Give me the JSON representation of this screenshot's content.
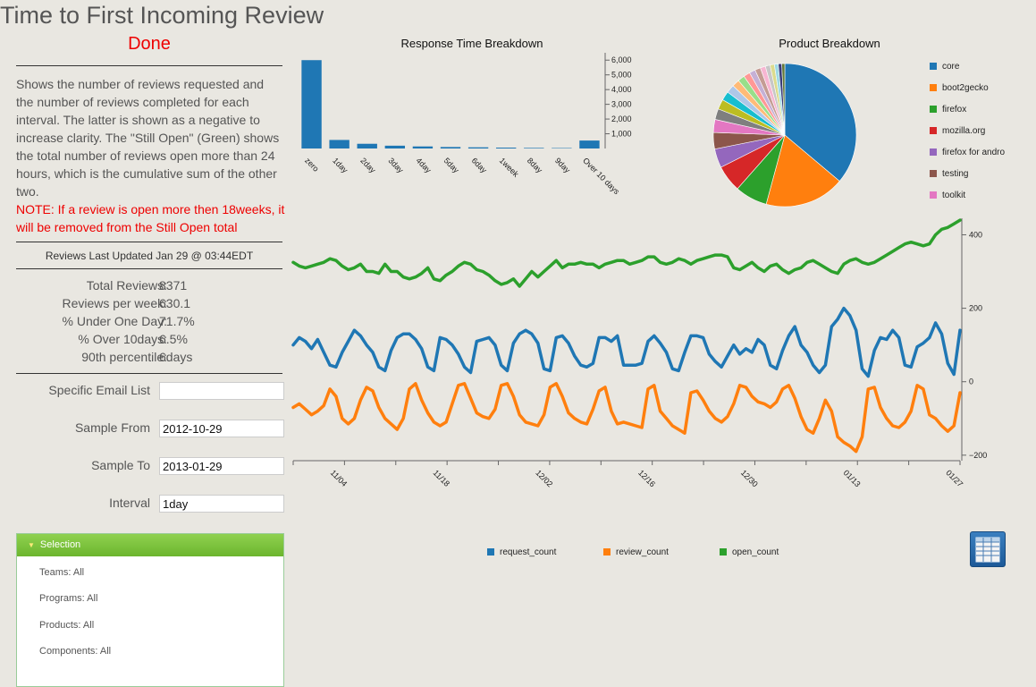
{
  "page": {
    "title": "Time to First Incoming Review",
    "status": "Done",
    "description": "Shows the number of reviews requested and the number of reviews completed for each interval. The latter is shown as a negative to increase clarity. The \"Still Open\" (Green) shows the total number of reviews open more than 24 hours, which is the cumulative sum of the other two.",
    "note": "NOTE: If a review is open more then 18weeks, it will be removed from the Still Open total",
    "last_updated": "Reviews Last Updated Jan 29 @ 03:44EDT"
  },
  "stats": [
    {
      "label": "Total Reviews:",
      "value": "8371"
    },
    {
      "label": "Reviews per week:",
      "value": "630.1"
    },
    {
      "label": "% Under One Day:",
      "value": "71.7%"
    },
    {
      "label": "% Over 10days:",
      "value": "6.5%"
    },
    {
      "label": "90th percentile:",
      "value": "6days"
    }
  ],
  "form": {
    "email_label": "Specific Email List",
    "email_value": "",
    "from_label": "Sample From",
    "from_value": "2012-10-29",
    "to_label": "Sample To",
    "to_value": "2013-01-29",
    "interval_label": "Interval",
    "interval_value": "1day"
  },
  "selection": {
    "header": "Selection",
    "items": [
      "Teams: All",
      "Programs: All",
      "Products: All",
      "Components: All"
    ]
  },
  "chart_data": [
    {
      "type": "bar",
      "title": "Response Time Breakdown",
      "categories": [
        "zero",
        "1day",
        "2day",
        "3day",
        "4day",
        "5day",
        "6day",
        "1week",
        "8day",
        "9day",
        "Over 10 days"
      ],
      "values": [
        6000,
        580,
        320,
        190,
        140,
        100,
        80,
        60,
        40,
        30,
        540
      ],
      "ylim": [
        0,
        6500
      ],
      "yticks": [
        1000,
        2000,
        3000,
        4000,
        5000,
        6000
      ],
      "ytick_labels": [
        "1,000",
        "2,000",
        "3,000",
        "4,000",
        "5,000",
        "6,000"
      ],
      "color": "#1f77b4"
    },
    {
      "type": "pie",
      "title": "Product Breakdown",
      "legend_position": "right",
      "slices": [
        {
          "name": "core",
          "value": 37.0,
          "color": "#1f77b4"
        },
        {
          "name": "boot2gecko",
          "value": 18.5,
          "color": "#ff7f0e"
        },
        {
          "name": "firefox",
          "value": 7.5,
          "color": "#2ca02c"
        },
        {
          "name": "mozilla.org",
          "value": 6.2,
          "color": "#d62728"
        },
        {
          "name": "firefox for andro",
          "value": 4.4,
          "color": "#9467bd"
        },
        {
          "name": "testing",
          "value": 3.8,
          "color": "#8c564b"
        },
        {
          "name": "toolkit",
          "value": 3.0,
          "color": "#e377c2"
        },
        {
          "value": 2.5,
          "color": "#7f7f7f"
        },
        {
          "value": 2.3,
          "color": "#bcbd22"
        },
        {
          "value": 2.1,
          "color": "#17becf"
        },
        {
          "value": 1.9,
          "color": "#aec7e8"
        },
        {
          "value": 1.7,
          "color": "#ffbb78"
        },
        {
          "value": 1.6,
          "color": "#98df8a"
        },
        {
          "value": 1.5,
          "color": "#ff9896"
        },
        {
          "value": 1.4,
          "color": "#c5b0d5"
        },
        {
          "value": 1.3,
          "color": "#c49c94"
        },
        {
          "value": 1.2,
          "color": "#f7b6d2"
        },
        {
          "value": 1.1,
          "color": "#c7c7c7"
        },
        {
          "value": 1.0,
          "color": "#dbdb8d"
        },
        {
          "value": 0.9,
          "color": "#9edae5"
        },
        {
          "value": 0.8,
          "color": "#393b79"
        },
        {
          "value": 0.7,
          "color": "#637939"
        }
      ]
    },
    {
      "type": "line",
      "xlabels": [
        "11/04",
        "11/18",
        "12/02",
        "12/16",
        "12/30",
        "01/13",
        "01/27"
      ],
      "x_start": "2012-10-29",
      "x_end": "2013-01-28",
      "ylim": [
        -215,
        445
      ],
      "yticks": [
        -200,
        0,
        200,
        400
      ],
      "ytick_labels": [
        "−200",
        "0",
        "200",
        "400"
      ],
      "series": [
        {
          "name": "request_count",
          "color": "#1f77b4",
          "values": [
            100,
            120,
            110,
            90,
            115,
            80,
            45,
            40,
            80,
            110,
            140,
            125,
            100,
            80,
            40,
            30,
            85,
            120,
            130,
            130,
            115,
            90,
            40,
            30,
            120,
            115,
            100,
            75,
            40,
            25,
            110,
            115,
            120,
            100,
            45,
            30,
            105,
            130,
            140,
            130,
            105,
            35,
            30,
            120,
            125,
            105,
            70,
            45,
            40,
            50,
            120,
            120,
            110,
            125,
            45,
            45,
            45,
            50,
            110,
            125,
            105,
            80,
            35,
            30,
            80,
            125,
            125,
            120,
            75,
            55,
            40,
            70,
            100,
            75,
            90,
            80,
            115,
            100,
            45,
            35,
            85,
            125,
            150,
            100,
            80,
            45,
            25,
            45,
            150,
            170,
            200,
            180,
            140,
            35,
            15,
            85,
            120,
            115,
            140,
            120,
            45,
            40,
            95,
            105,
            120,
            160,
            130,
            50,
            20,
            140
          ]
        },
        {
          "name": "review_count",
          "color": "#ff7f0e",
          "values": [
            -70,
            -60,
            -75,
            -90,
            -80,
            -65,
            -20,
            -40,
            -100,
            -115,
            -100,
            -50,
            -15,
            -25,
            -70,
            -100,
            -115,
            -130,
            -100,
            -20,
            -5,
            -50,
            -85,
            -110,
            -120,
            -110,
            -60,
            -10,
            -5,
            -45,
            -85,
            -95,
            -100,
            -75,
            -10,
            -5,
            -40,
            -90,
            -110,
            -115,
            -120,
            -90,
            -15,
            -5,
            -40,
            -85,
            -100,
            -110,
            -115,
            -75,
            -25,
            -15,
            -80,
            -115,
            -110,
            -115,
            -120,
            -125,
            -20,
            -10,
            -80,
            -100,
            -120,
            -130,
            -140,
            -30,
            -25,
            -50,
            -80,
            -100,
            -110,
            -95,
            -60,
            -10,
            -15,
            -40,
            -55,
            -60,
            -70,
            -55,
            -20,
            -10,
            -45,
            -95,
            -130,
            -140,
            -100,
            -50,
            -80,
            -150,
            -165,
            -175,
            -190,
            -150,
            -20,
            -15,
            -70,
            -100,
            -120,
            -125,
            -110,
            -80,
            -10,
            -20,
            -90,
            -100,
            -120,
            -135,
            -120,
            -30
          ]
        },
        {
          "name": "open_count",
          "color": "#2ca02c",
          "values": [
            325,
            315,
            310,
            315,
            320,
            325,
            335,
            330,
            315,
            305,
            310,
            320,
            300,
            300,
            295,
            320,
            300,
            300,
            285,
            280,
            285,
            295,
            310,
            280,
            275,
            290,
            300,
            315,
            325,
            320,
            305,
            300,
            290,
            275,
            265,
            270,
            280,
            260,
            280,
            300,
            285,
            300,
            315,
            330,
            310,
            320,
            320,
            325,
            320,
            320,
            310,
            320,
            325,
            330,
            330,
            320,
            325,
            330,
            340,
            340,
            325,
            320,
            325,
            335,
            330,
            320,
            330,
            335,
            340,
            345,
            345,
            340,
            310,
            305,
            315,
            325,
            310,
            300,
            315,
            320,
            305,
            295,
            305,
            310,
            325,
            330,
            320,
            310,
            300,
            295,
            320,
            330,
            335,
            325,
            320,
            325,
            335,
            345,
            355,
            365,
            375,
            380,
            375,
            370,
            375,
            400,
            415,
            420,
            430,
            440
          ]
        }
      ]
    }
  ]
}
